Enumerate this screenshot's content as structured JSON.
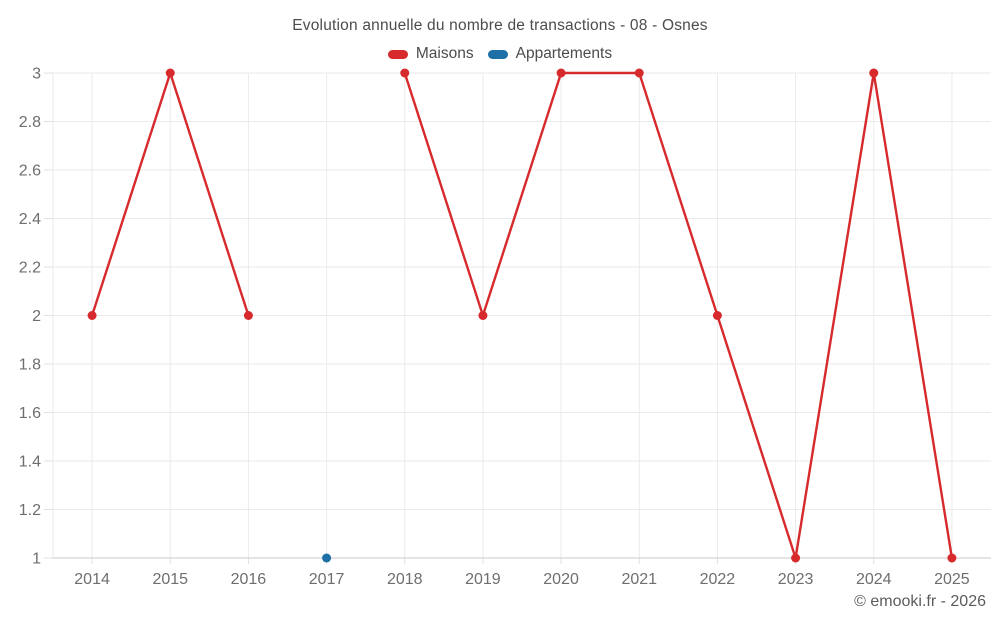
{
  "header": {
    "title": "Evolution annuelle du nombre de transactions - 08 - Osnes"
  },
  "footer": {
    "watermark": "© emooki.fr - 2026"
  },
  "colors": {
    "background": "#ffffff",
    "grid": "#eaeaea",
    "axis_line": "#d4d4d4",
    "tick": "#e0e0e0",
    "tick_label": "#6e6e6e",
    "title_text": "#4c4c4c",
    "watermark_text": "#5c5c5c",
    "maisons_red": "#d62a2d",
    "appartements_blue": "#1d6fa5"
  },
  "chart_data": {
    "type": "line",
    "title": "Evolution annuelle du nombre de transactions - 08 - Osnes",
    "x": [
      "2014",
      "2015",
      "2016",
      "2017",
      "2018",
      "2019",
      "2020",
      "2021",
      "2022",
      "2023",
      "2024",
      "2025"
    ],
    "series": [
      {
        "name": "Maisons",
        "color": "#d62a2d",
        "values": [
          2,
          3,
          2,
          null,
          3,
          2,
          3,
          3,
          2,
          1,
          3,
          1
        ]
      },
      {
        "name": "Appartements",
        "color": "#1d6fa5",
        "values": [
          null,
          null,
          null,
          1,
          null,
          null,
          null,
          null,
          null,
          null,
          null,
          null
        ]
      }
    ],
    "xlabel": "",
    "ylabel": "",
    "ylim": [
      1,
      3
    ],
    "y_ticks": [
      3,
      2.8,
      2.6,
      2.4,
      2.2,
      2,
      1.8,
      1.6,
      1.4,
      1.2,
      1
    ],
    "y_tick_labels": [
      "3",
      "2.8",
      "2.6",
      "2.4",
      "2.2",
      "2",
      "1.8",
      "1.6",
      "1.4",
      "1.2",
      "1"
    ],
    "grid": true,
    "legend_position": "top"
  }
}
